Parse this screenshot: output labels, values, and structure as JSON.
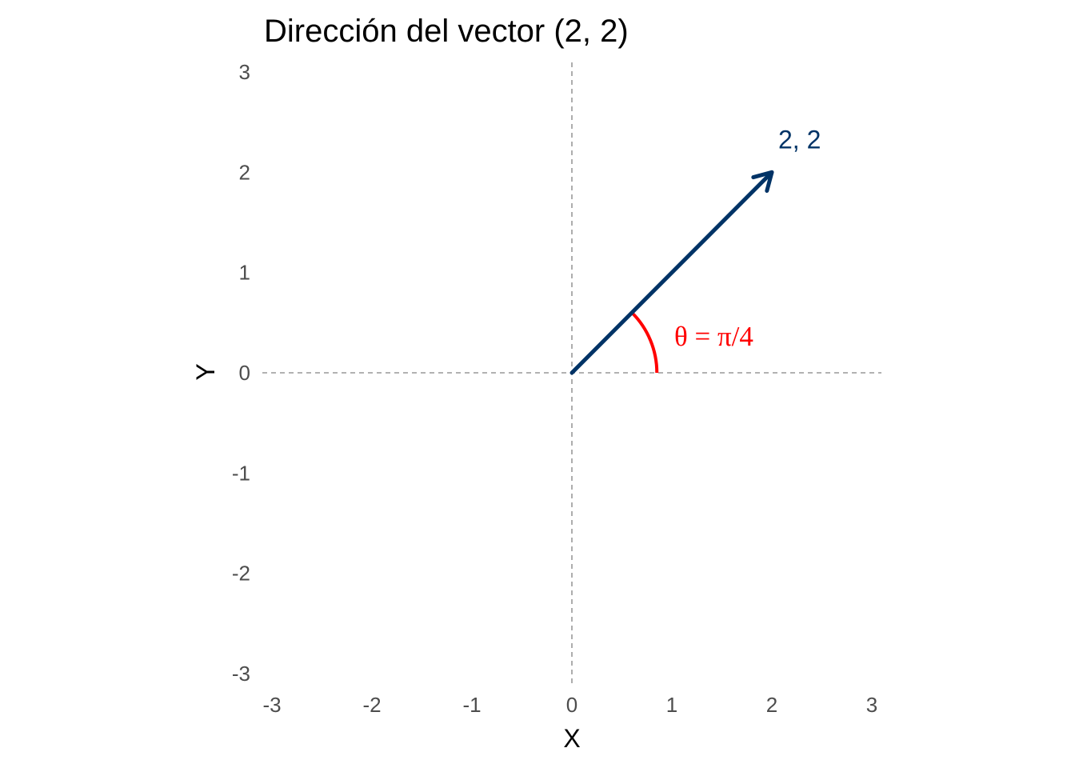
{
  "chart_data": {
    "type": "line",
    "title": "Dirección del vector (2, 2)",
    "xlabel": "X",
    "ylabel": "Y",
    "xlim": [
      -3,
      3
    ],
    "ylim": [
      -3,
      3
    ],
    "x_ticks": [
      "-3",
      "-2",
      "-1",
      "0",
      "1",
      "2",
      "3"
    ],
    "y_ticks": [
      "-3",
      "-2",
      "-1",
      "0",
      "1",
      "2",
      "3"
    ],
    "grid": false,
    "reference_lines": [
      {
        "axis": "x",
        "value": 0,
        "style": "dashed"
      },
      {
        "axis": "y",
        "value": 0,
        "style": "dashed"
      }
    ],
    "vector": {
      "from": [
        0,
        0
      ],
      "to": [
        2,
        2
      ],
      "label": "2, 2",
      "color": "#003366"
    },
    "angle": {
      "radius": 0.85,
      "from_angle_rad": 0,
      "to_angle_rad": 0.7853981634,
      "label": "θ = π/4",
      "color": "#ff0000"
    },
    "reference_line_color": "#999999"
  }
}
